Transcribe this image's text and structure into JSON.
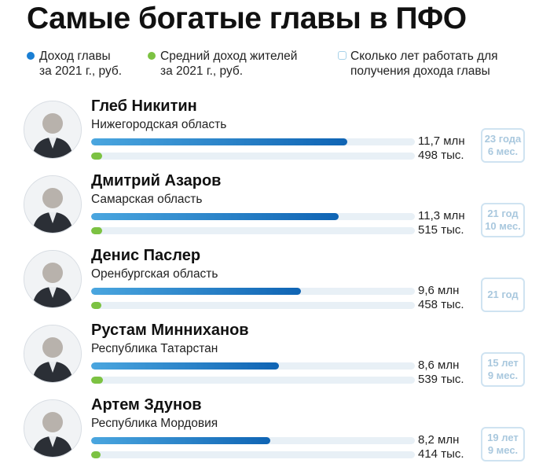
{
  "title": "Самые богатые главы в ПФО",
  "legend": [
    {
      "lines": [
        "Доход главы",
        "за 2021 г., руб."
      ],
      "marker": "dot",
      "color": "#1a7fd4"
    },
    {
      "lines": [
        "Средний доход жителей",
        "за 2021 г., руб."
      ],
      "marker": "dot",
      "color": "#7cc242"
    },
    {
      "lines": [
        "Сколько лет работать для",
        "получения дохода главы"
      ],
      "marker": "square",
      "color": "#a7d2e9"
    }
  ],
  "rows": [
    {
      "name": "Глеб Никитин",
      "region": "Нижегородская область",
      "head_income_label": "11,7 млн",
      "resident_income_label": "498 тыс.",
      "years_lines": [
        "23 года",
        "6 мес."
      ]
    },
    {
      "name": "Дмитрий Азаров",
      "region": "Самарская область",
      "head_income_label": "11,3 млн",
      "resident_income_label": "515 тыс.",
      "years_lines": [
        "21 год",
        "10 мес."
      ]
    },
    {
      "name": "Денис Паслер",
      "region": "Оренбургская область",
      "head_income_label": "9,6 млн",
      "resident_income_label": "458 тыс.",
      "years_lines": [
        "21 год"
      ]
    },
    {
      "name": "Рустам Минниханов",
      "region": "Республика Татарстан",
      "head_income_label": "8,6 млн",
      "resident_income_label": "539 тыс.",
      "years_lines": [
        "15 лет",
        "9 мес."
      ]
    },
    {
      "name": "Артем Здунов",
      "region": "Республика Мордовия",
      "head_income_label": "8,2 млн",
      "resident_income_label": "414 тыс.",
      "years_lines": [
        "19 лет",
        "9 мес."
      ]
    }
  ],
  "chart_data": {
    "type": "bar",
    "orientation": "horizontal",
    "title": "Самые богатые главы в ПФО",
    "categories": [
      "Глеб Никитин",
      "Дмитрий Азаров",
      "Денис Паслер",
      "Рустам Минниханов",
      "Артем Здунов"
    ],
    "series": [
      {
        "name": "Доход главы за 2021 г., руб.",
        "values": [
          11700000,
          11300000,
          9600000,
          8600000,
          8200000
        ],
        "color": "#1a7fd4"
      },
      {
        "name": "Средний доход жителей за 2021 г., руб.",
        "values": [
          498000,
          515000,
          458000,
          539000,
          414000
        ],
        "color": "#7cc242"
      }
    ],
    "xlim": [
      0,
      14800000
    ],
    "grid": false,
    "legend_position": "top"
  }
}
